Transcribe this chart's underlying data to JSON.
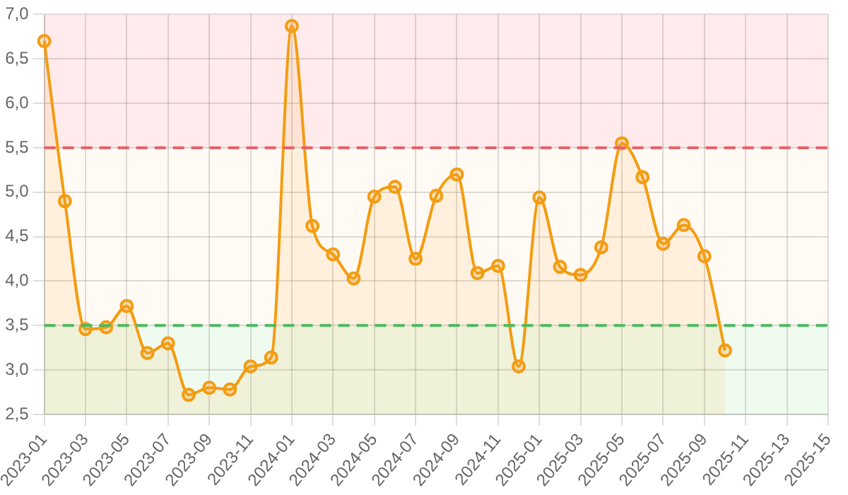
{
  "chart_data": {
    "type": "area",
    "categories": [
      "2023-01",
      null,
      "2023-03",
      null,
      "2023-05",
      null,
      "2023-07",
      null,
      "2023-09",
      null,
      "2023-11",
      null,
      "2024-01",
      null,
      "2024-03",
      null,
      "2024-05",
      null,
      "2024-07",
      null,
      "2024-09",
      null,
      "2024-11",
      null,
      "2025-01",
      null,
      "2025-03",
      null,
      "2025-05",
      null,
      "2025-07",
      null,
      "2025-09",
      null,
      "2025-11",
      null,
      "2025-13",
      null,
      "2025-15"
    ],
    "series": [
      {
        "color": "#f39c12",
        "values": [
          6.7,
          4.9,
          3.46,
          3.48,
          3.72,
          3.19,
          3.3,
          2.72,
          2.8,
          2.78,
          3.04,
          3.14,
          6.87,
          4.62,
          4.3,
          4.03,
          4.95,
          5.06,
          4.25,
          4.96,
          5.2,
          4.09,
          4.17,
          3.04,
          4.94,
          4.16,
          4.07,
          4.38,
          5.55,
          5.17,
          4.42,
          4.63,
          4.28,
          3.22,
          null,
          null,
          null,
          null,
          null
        ]
      }
    ],
    "ylim": [
      2.5,
      7
    ],
    "yticks": [
      {
        "value": 2.5,
        "label": "2,5"
      },
      {
        "value": 3,
        "label": "3,0"
      },
      {
        "value": 3.5,
        "label": "3,5"
      },
      {
        "value": 4,
        "label": "4,0"
      },
      {
        "value": 4.5,
        "label": "4,5"
      },
      {
        "value": 5,
        "label": "5,0"
      },
      {
        "value": 5.5,
        "label": "5,5"
      },
      {
        "value": 6,
        "label": "6,0"
      },
      {
        "value": 6.5,
        "label": "6,5"
      },
      {
        "value": 7,
        "label": "7,0"
      }
    ],
    "bands": [
      {
        "axis": "y",
        "from": 5.5,
        "to": 7,
        "color": "#ffebeb"
      },
      {
        "axis": "y",
        "from": 3.5,
        "to": 5.5,
        "color": "#fffaf3"
      },
      {
        "axis": "y",
        "from": 2.5,
        "to": 3.5,
        "color": "#f0fbf0"
      }
    ],
    "ref_lines": [
      {
        "axis": "y",
        "value": 5.5,
        "color": "#e8626b",
        "line_style": "dashed"
      },
      {
        "axis": "y",
        "value": 3.5,
        "color": "#4cb860",
        "line_style": "dashed"
      }
    ],
    "grid": true,
    "legend": false,
    "marker": "circle",
    "line_style": "solid"
  }
}
